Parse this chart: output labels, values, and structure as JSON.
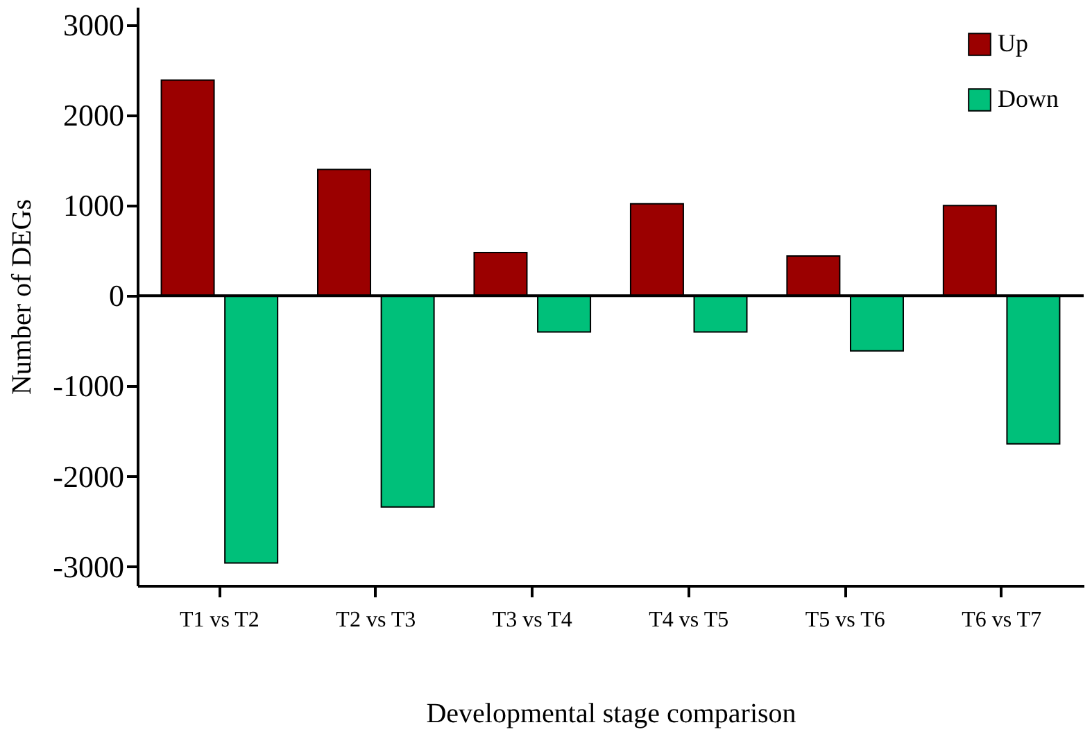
{
  "chart_data": {
    "type": "bar",
    "xlabel": "Developmental stage comparison",
    "ylabel": "Number of DEGs",
    "categories": [
      "T1 vs T2",
      "T2 vs T3",
      "T3 vs T4",
      "T4 vs T5",
      "T5 vs T6",
      "T6 vs T7"
    ],
    "series": [
      {
        "name": "Up",
        "color": "#9b0000",
        "values": [
          2390,
          1400,
          480,
          1020,
          440,
          1000
        ]
      },
      {
        "name": "Down",
        "color": "#00c07a",
        "values": [
          -2960,
          -2340,
          -400,
          -400,
          -610,
          -1640
        ]
      }
    ],
    "ylim": [
      -3210,
      3200
    ],
    "yticks": [
      -3000,
      -2000,
      -1000,
      0,
      1000,
      2000,
      3000
    ],
    "ref_lines": [
      {
        "axis": "y",
        "value": 0
      }
    ],
    "grid": false,
    "legend": "top right"
  }
}
